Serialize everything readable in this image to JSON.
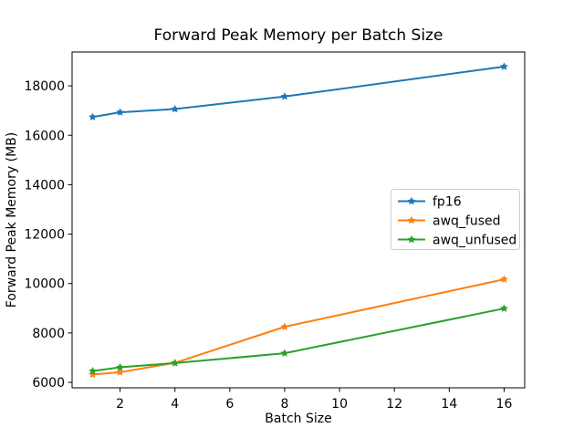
{
  "chart_data": {
    "type": "line",
    "title": "Forward Peak Memory per Batch Size",
    "xlabel": "Batch Size",
    "ylabel": "Forward Peak Memory (MB)",
    "x": [
      1,
      2,
      4,
      8,
      16
    ],
    "series": [
      {
        "name": "fp16",
        "color": "#1f77b4",
        "marker": "star",
        "values": [
          16740,
          16930,
          17060,
          17570,
          18780
        ]
      },
      {
        "name": "awq_fused",
        "color": "#ff7f0e",
        "marker": "star",
        "values": [
          6320,
          6410,
          6790,
          8250,
          10170
        ]
      },
      {
        "name": "awq_unfused",
        "color": "#2ca02c",
        "marker": "star",
        "values": [
          6460,
          6610,
          6780,
          7180,
          8990
        ]
      }
    ],
    "xticks": [
      2,
      4,
      6,
      8,
      10,
      12,
      14,
      16
    ],
    "yticks": [
      6000,
      8000,
      10000,
      12000,
      14000,
      16000,
      18000
    ],
    "xlim": [
      0.25,
      16.75
    ],
    "ylim": [
      5780,
      19370
    ],
    "grid": false,
    "legend": {
      "position": "center-right",
      "entries": [
        "fp16",
        "awq_fused",
        "awq_unfused"
      ]
    },
    "colors": {
      "background": "#ffffff",
      "axes": "#000000",
      "legend_border": "#cccccc",
      "legend_background": "#ffffff"
    }
  }
}
